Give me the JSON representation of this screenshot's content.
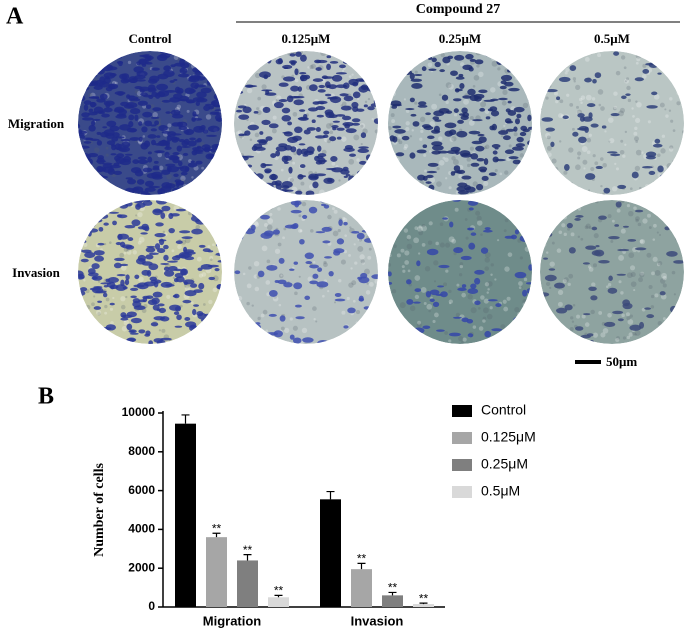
{
  "panel_a": {
    "label": "A",
    "group_label": "Compound 27",
    "columns": [
      "Control",
      "0.125μM",
      "0.25μM",
      "0.5μM"
    ],
    "rows": [
      "Migration",
      "Invasion"
    ],
    "scale_bar": "50μm"
  },
  "panel_b_label": "B",
  "chart_data": {
    "type": "bar",
    "categories": [
      "Migration",
      "Invasion"
    ],
    "ylabel": "Number of cells",
    "ylim": [
      0,
      10000
    ],
    "yticks": [
      0,
      2000,
      4000,
      6000,
      8000,
      10000
    ],
    "series": [
      {
        "name": "Control",
        "color": "#000000",
        "values": [
          9450,
          5550
        ],
        "errors": [
          450,
          400
        ]
      },
      {
        "name": "0.125μM",
        "color": "#a6a6a6",
        "values": [
          3600,
          1950
        ],
        "errors": [
          200,
          300
        ],
        "significance": [
          "**",
          "**"
        ]
      },
      {
        "name": "0.25μM",
        "color": "#7f7f7f",
        "values": [
          2400,
          600
        ],
        "errors": [
          300,
          150
        ],
        "significance": [
          "**",
          "**"
        ]
      },
      {
        "name": "0.5μM",
        "color": "#d9d9d9",
        "values": [
          500,
          150
        ],
        "errors": [
          100,
          50
        ],
        "significance": [
          "**",
          "**"
        ]
      }
    ]
  }
}
